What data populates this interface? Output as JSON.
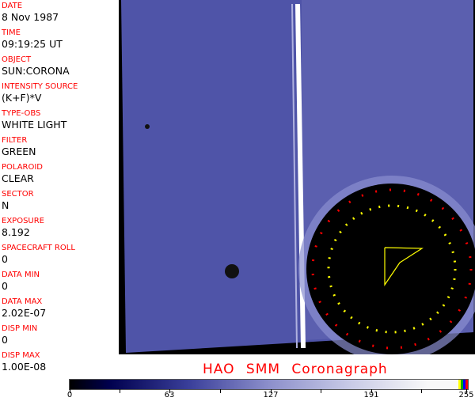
{
  "fields": [
    {
      "label": "DATE",
      "value": "8 Nov 1987"
    },
    {
      "label": "TIME",
      "value": "09:19:25 UT"
    },
    {
      "label": "OBJECT",
      "value": "SUN:CORONA"
    },
    {
      "label": "INTENSITY SOURCE",
      "value": "(K+F)*V"
    },
    {
      "label": "TYPE-OBS",
      "value": "WHITE LIGHT"
    },
    {
      "label": "FILTER",
      "value": "GREEN"
    },
    {
      "label": "POLAROID",
      "value": "CLEAR"
    },
    {
      "label": "SECTOR",
      "value": "N"
    },
    {
      "label": "EXPOSURE",
      "value": "8.192"
    },
    {
      "label": "SPACECRAFT ROLL",
      "value": "0"
    },
    {
      "label": "DATA MIN",
      "value": "0"
    },
    {
      "label": "DATA MAX",
      "value": "2.02E-07"
    },
    {
      "label": "DISP MIN",
      "value": "0"
    },
    {
      "label": "DISP MAX",
      "value": "1.00E-08"
    }
  ],
  "title": "HAO  SMM Coronagraph",
  "colorbar": {
    "ticks": [
      "0",
      "63",
      "127",
      "191",
      "255"
    ],
    "colors": [
      "#000000",
      "#00004e",
      "#8c8fcb",
      "#f8f8f8"
    ]
  }
}
